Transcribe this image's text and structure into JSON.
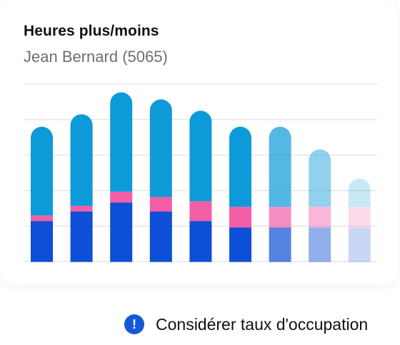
{
  "header": {
    "title": "Heures plus/moins",
    "subtitle": "Jean Bernard (5065)"
  },
  "notice": {
    "icon": "exclamation-circle-icon",
    "glyph": "!",
    "text": "Considérer taux d'occupation"
  },
  "colors": {
    "top": "#0d9ad8",
    "middle": "#f25fa7",
    "bottom": "#0d4fd6",
    "grid": "#e6e6ea"
  },
  "chart_data": {
    "type": "bar",
    "stacked": true,
    "grid": true,
    "ylim": [
      0,
      5
    ],
    "categories": [
      "",
      "",
      "",
      "",
      "",
      "",
      "",
      "",
      ""
    ],
    "opacity": [
      1,
      1,
      1,
      1,
      1,
      1,
      0.7,
      0.45,
      0.22
    ],
    "series": [
      {
        "values": [
          1.15,
          1.42,
          1.67,
          1.42,
          1.15,
          0.97,
          0.97,
          0.97,
          0.97
        ]
      },
      {
        "values": [
          0.15,
          0.15,
          0.3,
          0.4,
          0.55,
          0.57,
          0.57,
          0.57,
          0.57
        ]
      },
      {
        "values": [
          2.5,
          2.58,
          2.8,
          2.75,
          2.55,
          2.26,
          2.26,
          1.62,
          0.8
        ]
      }
    ]
  }
}
